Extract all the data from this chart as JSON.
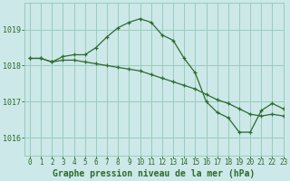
{
  "title": "Graphe pression niveau de la mer (hPa)",
  "bg_color": "#cce8e8",
  "grid_color": "#99ccbb",
  "line_color": "#2d6a2d",
  "xlim": [
    -0.5,
    23
  ],
  "ylim": [
    1015.5,
    1019.75
  ],
  "yticks": [
    1016,
    1017,
    1018,
    1019
  ],
  "xticks": [
    0,
    1,
    2,
    3,
    4,
    5,
    6,
    7,
    8,
    9,
    10,
    11,
    12,
    13,
    14,
    15,
    16,
    17,
    18,
    19,
    20,
    21,
    22,
    23
  ],
  "series1_x": [
    0,
    1,
    2,
    3,
    4,
    5,
    6,
    7,
    8,
    9,
    10,
    11,
    12,
    13,
    14,
    15,
    16,
    17,
    18,
    19,
    20,
    21,
    22,
    23
  ],
  "series1_y": [
    1018.2,
    1018.2,
    1018.1,
    1018.25,
    1018.3,
    1018.3,
    1018.5,
    1018.8,
    1019.05,
    1019.2,
    1019.3,
    1019.2,
    1018.85,
    1018.7,
    1018.2,
    1017.8,
    1017.0,
    1016.7,
    1016.55,
    1016.15,
    1016.15,
    1016.75,
    1016.95,
    1016.8
  ],
  "series2_x": [
    0,
    1,
    2,
    3,
    4,
    5,
    6,
    7,
    8,
    9,
    10,
    11,
    12,
    13,
    14,
    15,
    16,
    17,
    18,
    19,
    20,
    21,
    22,
    23
  ],
  "series2_y": [
    1018.2,
    1018.2,
    1018.1,
    1018.15,
    1018.15,
    1018.1,
    1018.05,
    1018.0,
    1017.95,
    1017.9,
    1017.85,
    1017.75,
    1017.65,
    1017.55,
    1017.45,
    1017.35,
    1017.2,
    1017.05,
    1016.95,
    1016.8,
    1016.65,
    1016.6,
    1016.65,
    1016.6
  ],
  "ylabel_fontsize": 5,
  "xlabel_fontsize": 7,
  "title_fontsize": 7,
  "tick_fontsize": 5.5
}
